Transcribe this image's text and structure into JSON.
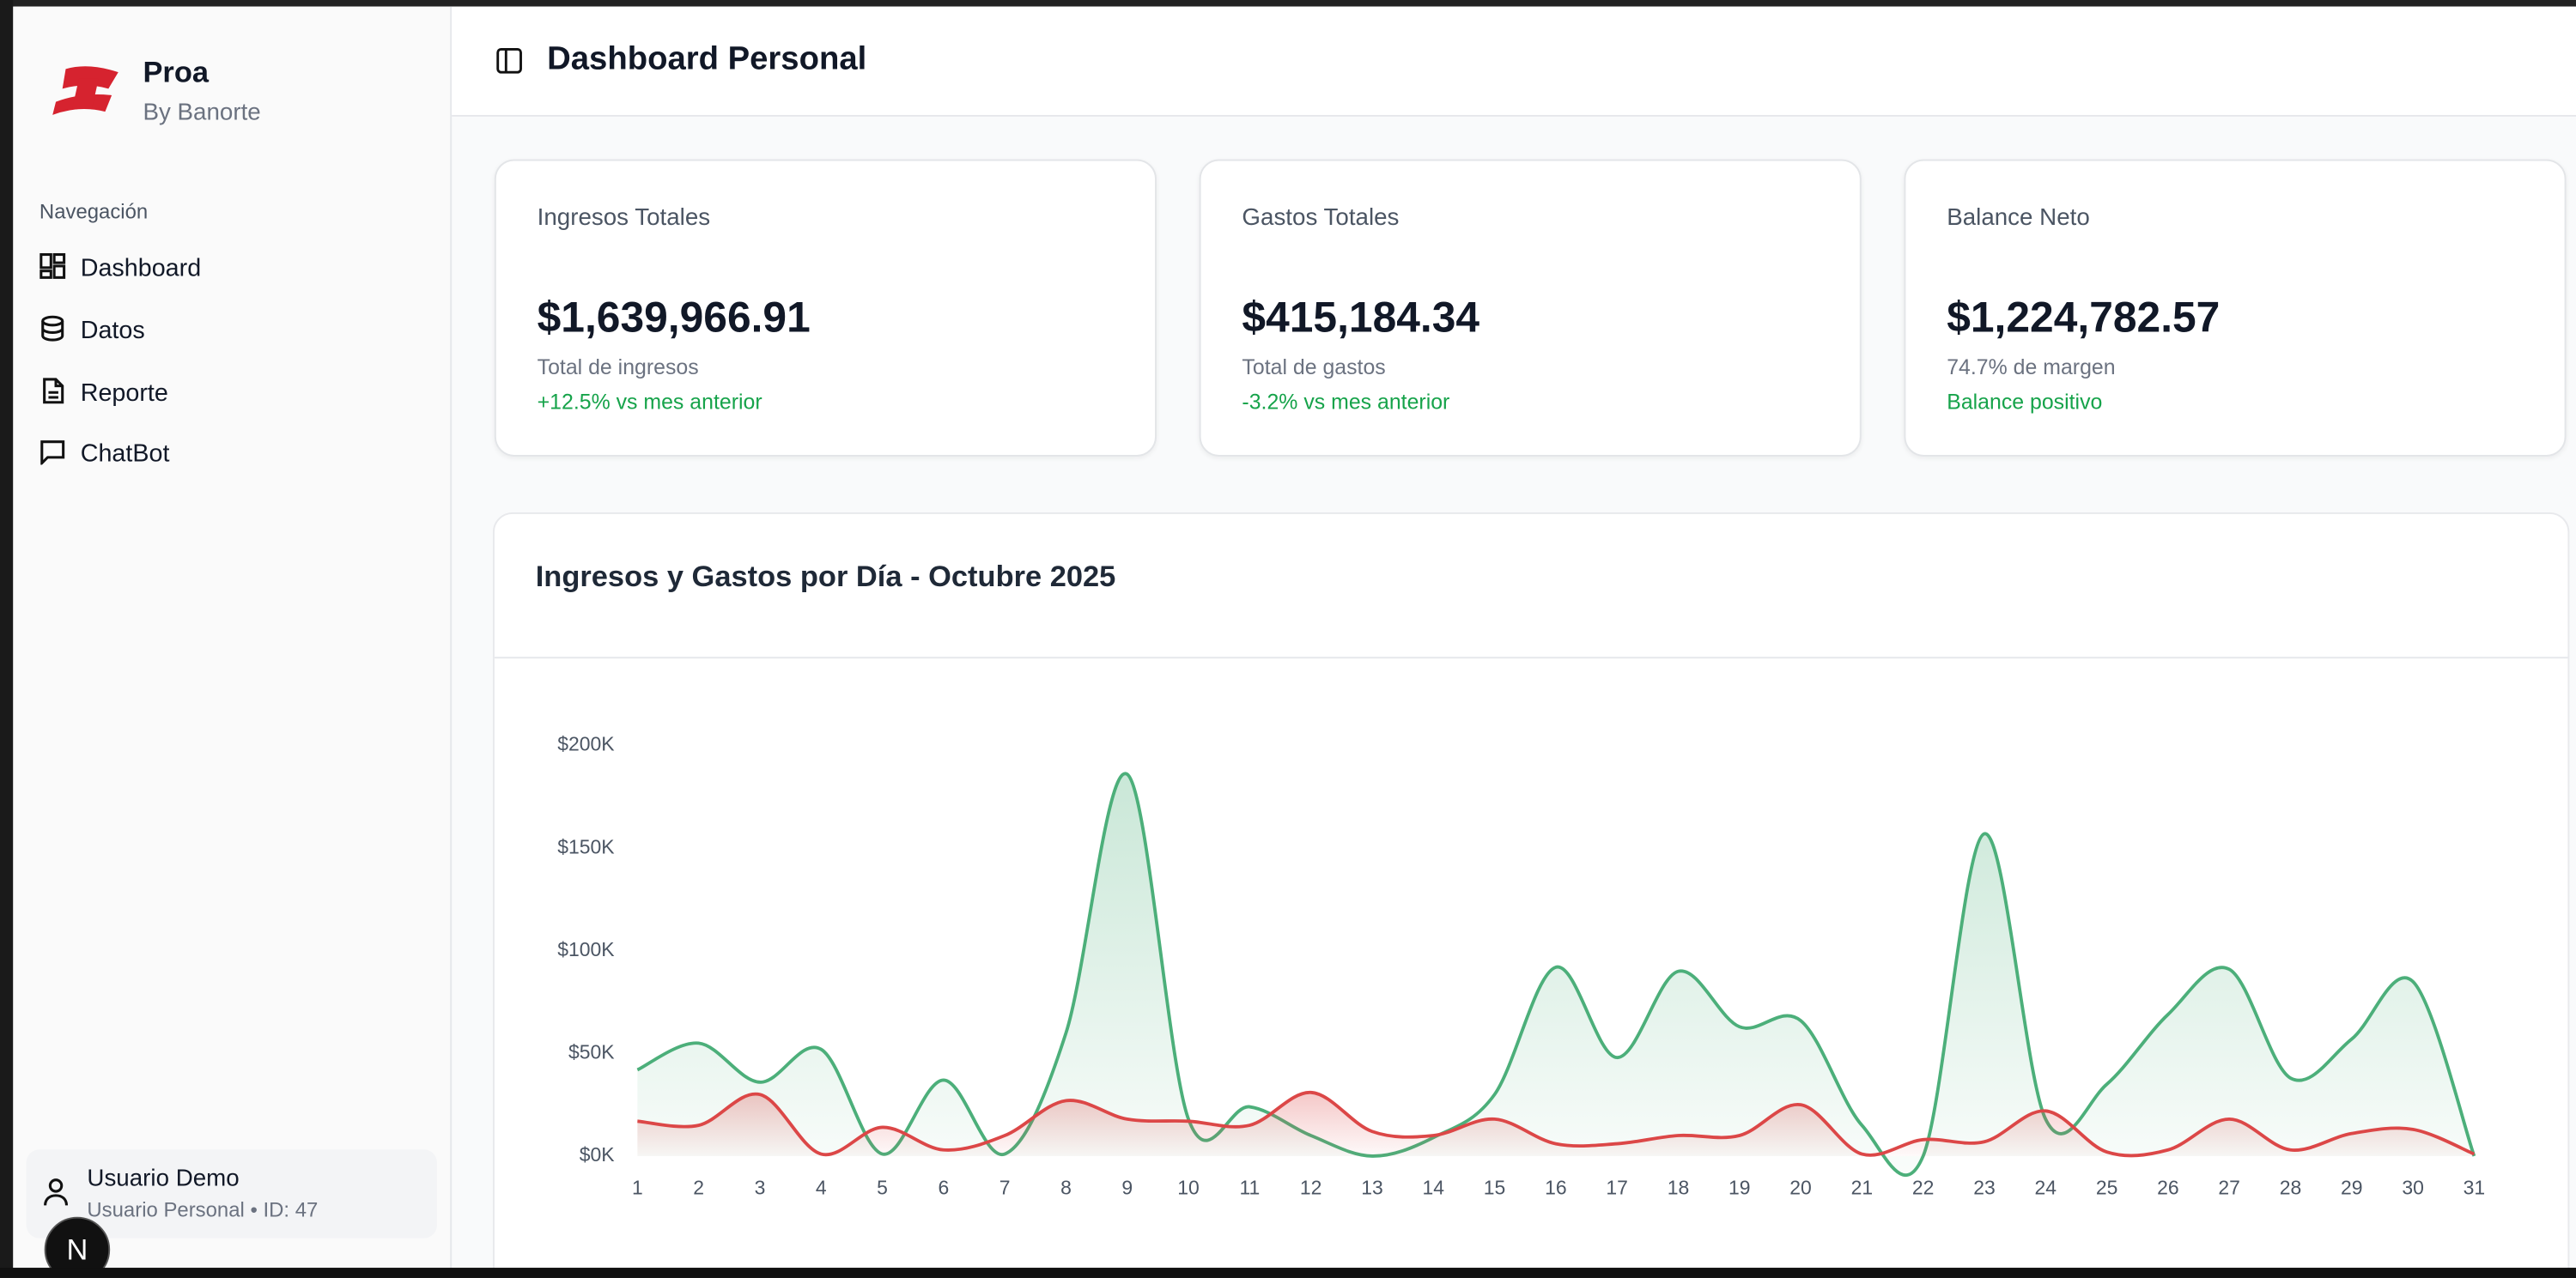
{
  "sidebar": {
    "brand": "Proa",
    "brand_sub": "By Banorte",
    "nav_heading": "Navegación",
    "nav": [
      "Dashboard",
      "Datos",
      "Reporte",
      "ChatBot"
    ],
    "user_name": "Usuario Demo",
    "user_meta": "Usuario Personal • ID: 47",
    "dev_badge": "N"
  },
  "header": {
    "title": "Dashboard Personal"
  },
  "cards": [
    {
      "label": "Ingresos Totales",
      "value": "$1,639,966.91",
      "caption": "Total de ingresos",
      "note": "+12.5% vs mes anterior"
    },
    {
      "label": "Gastos Totales",
      "value": "$415,184.34",
      "caption": "Total de gastos",
      "note": "-3.2% vs mes anterior"
    },
    {
      "label": "Balance Neto",
      "value": "$1,224,782.57",
      "caption": "74.7% de margen",
      "note": "Balance positivo"
    }
  ],
  "chart_data": {
    "type": "area",
    "title": "Ingresos y Gastos por Día - Octubre 2025",
    "categories": [
      "1",
      "2",
      "3",
      "4",
      "5",
      "6",
      "7",
      "8",
      "9",
      "10",
      "11",
      "12",
      "13",
      "14",
      "15",
      "16",
      "17",
      "18",
      "19",
      "20",
      "21",
      "22",
      "23",
      "24",
      "25",
      "26",
      "27",
      "28",
      "29",
      "30",
      "31"
    ],
    "series": [
      {
        "color": "#4caf7a",
        "values": [
          42000,
          55000,
          36000,
          52000,
          1000,
          37000,
          1000,
          60000,
          186000,
          18000,
          24000,
          10000,
          0,
          9000,
          30000,
          92000,
          48000,
          90000,
          63000,
          66000,
          15000,
          0,
          157000,
          18000,
          35000,
          69000,
          91000,
          38000,
          57000,
          85000,
          0
        ]
      },
      {
        "color": "#dc4747",
        "values": [
          17000,
          15000,
          30000,
          1000,
          14000,
          3000,
          10000,
          27000,
          18000,
          17000,
          15000,
          31000,
          12000,
          10000,
          18000,
          6000,
          6000,
          10000,
          10000,
          25000,
          1000,
          8000,
          7000,
          22000,
          2000,
          3000,
          18000,
          3000,
          11000,
          13000,
          1000
        ]
      }
    ],
    "ylim": [
      0,
      200000
    ],
    "yticks": [
      {
        "value": 0,
        "label": "$0K"
      },
      {
        "value": 50000,
        "label": "$50K"
      },
      {
        "value": 100000,
        "label": "$100K"
      },
      {
        "value": 150000,
        "label": "$150K"
      },
      {
        "value": 200000,
        "label": "$200K"
      }
    ]
  }
}
